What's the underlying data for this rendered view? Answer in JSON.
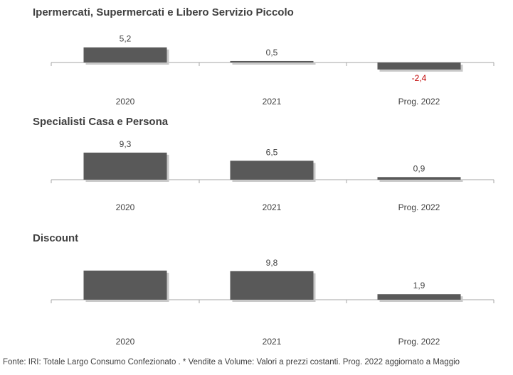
{
  "chart_data": [
    {
      "type": "bar",
      "title": "Ipermercati,  Supermercati e Libero Servizio Piccolo",
      "categories": [
        "2020",
        "2021",
        "Prog. 2022"
      ],
      "values": [
        5.2,
        0.5,
        -2.4
      ],
      "value_labels": [
        "5,2",
        "0,5",
        "-2,4"
      ],
      "negative_label_color": "#c00000"
    },
    {
      "type": "bar",
      "title": "Specialisti  Casa e Persona",
      "categories": [
        "2020",
        "2021",
        "Prog. 2022"
      ],
      "values": [
        9.3,
        6.5,
        0.9
      ],
      "value_labels": [
        "9,3",
        "6,5",
        "0,9"
      ]
    },
    {
      "type": "bar",
      "title": "Discount",
      "categories": [
        "2020",
        "2021",
        "Prog. 2022"
      ],
      "values": [
        10.0,
        9.8,
        1.9
      ],
      "value_labels": [
        "",
        "9,8",
        "1,9"
      ]
    }
  ],
  "colors": {
    "bar": "#595959",
    "shadow": "#c8c8c8",
    "axis": "#a6a6a6",
    "label": "#404040",
    "negative": "#c00000"
  },
  "footer": "Fonte: IRI: Totale Largo Consumo Confezionato . * Vendite a Volume: Valori a prezzi costanti.    Prog. 2022 aggiornato a Maggio"
}
